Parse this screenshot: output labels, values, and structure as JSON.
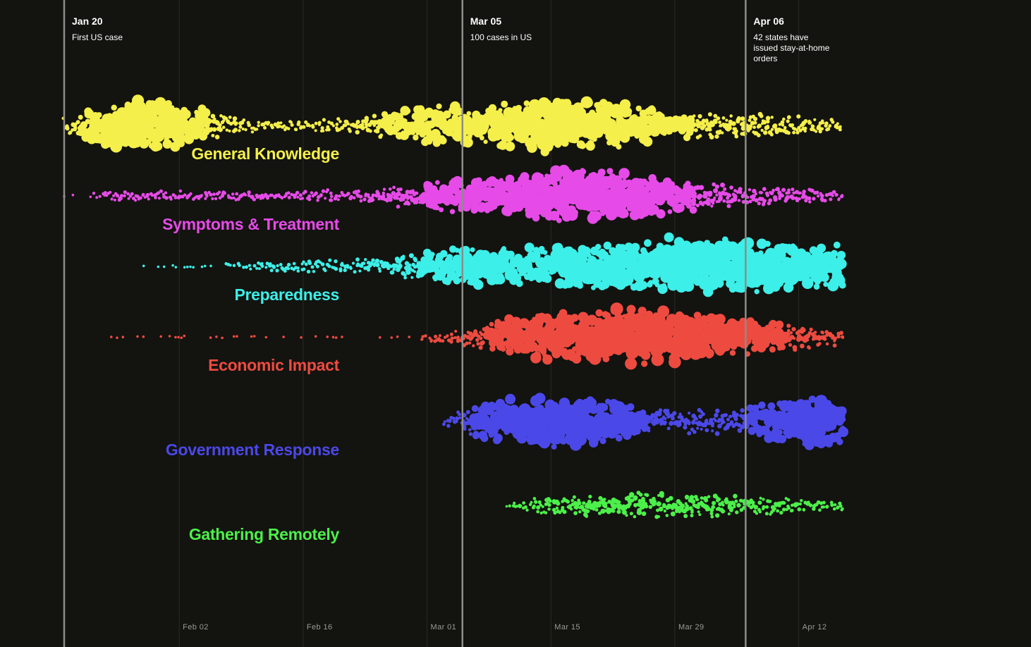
{
  "chart_data": {
    "type": "scatter",
    "subtype": "beeswarm-timeline",
    "x_axis": {
      "type": "date",
      "range": [
        "2020-01-20",
        "2020-04-17"
      ],
      "ticks": [
        {
          "date": "2020-02-02",
          "label": "Feb 02"
        },
        {
          "date": "2020-02-16",
          "label": "Feb 16"
        },
        {
          "date": "2020-03-01",
          "label": "Mar 01"
        },
        {
          "date": "2020-03-15",
          "label": "Mar 15"
        },
        {
          "date": "2020-03-29",
          "label": "Mar 29"
        },
        {
          "date": "2020-04-12",
          "label": "Apr 12"
        }
      ],
      "grid": true
    },
    "milestones": [
      {
        "date": "2020-01-20",
        "label": "Jan 20",
        "note": "First US case"
      },
      {
        "date": "2020-03-05",
        "label": "Mar 05",
        "note": "100 cases in US"
      },
      {
        "date": "2020-04-06",
        "label": "Apr 06",
        "note": "42 states have issued stay-at-home orders"
      }
    ],
    "series": [
      {
        "name": "General Knowledge",
        "color": "#f4ef4a",
        "density": [
          [
            0,
            0.25
          ],
          [
            3,
            0.65
          ],
          [
            7,
            0.95
          ],
          [
            10,
            0.95
          ],
          [
            13,
            0.8
          ],
          [
            17,
            0.45
          ],
          [
            21,
            0.25
          ],
          [
            28,
            0.18
          ],
          [
            33,
            0.35
          ],
          [
            38,
            0.6
          ],
          [
            43,
            0.7
          ],
          [
            47,
            0.65
          ],
          [
            51,
            0.85
          ],
          [
            56,
            1.0
          ],
          [
            62,
            0.8
          ],
          [
            68,
            0.55
          ],
          [
            74,
            0.45
          ],
          [
            81,
            0.38
          ],
          [
            88,
            0.25
          ]
        ]
      },
      {
        "name": "Symptoms & Treatment",
        "color": "#e64be8",
        "density": [
          [
            0,
            0.05
          ],
          [
            5,
            0.18
          ],
          [
            14,
            0.2
          ],
          [
            23,
            0.2
          ],
          [
            32,
            0.22
          ],
          [
            38,
            0.45
          ],
          [
            45,
            0.6
          ],
          [
            52,
            0.8
          ],
          [
            58,
            0.95
          ],
          [
            62,
            0.85
          ],
          [
            68,
            0.6
          ],
          [
            75,
            0.4
          ],
          [
            82,
            0.32
          ],
          [
            88,
            0.22
          ]
        ]
      },
      {
        "name": "Preparedness",
        "color": "#3cefe8",
        "density": [
          [
            7,
            0.08
          ],
          [
            10,
            0.08
          ],
          [
            13,
            0.08
          ],
          [
            35,
            0.3
          ],
          [
            40,
            0.5
          ],
          [
            45,
            0.7
          ],
          [
            52,
            0.7
          ],
          [
            60,
            0.8
          ],
          [
            68,
            1.0
          ],
          [
            75,
            0.95
          ],
          [
            82,
            0.85
          ],
          [
            88,
            0.75
          ]
        ]
      },
      {
        "name": "Economic Impact",
        "color": "#ee4b40",
        "density": [
          [
            4,
            0.1
          ],
          [
            14,
            0.1
          ],
          [
            24,
            0.1
          ],
          [
            40,
            0.12
          ],
          [
            45,
            0.3
          ],
          [
            50,
            0.65
          ],
          [
            56,
            0.85
          ],
          [
            62,
            1.0
          ],
          [
            68,
            0.95
          ],
          [
            74,
            0.75
          ],
          [
            80,
            0.55
          ],
          [
            88,
            0.3
          ]
        ]
      },
      {
        "name": "Government Response",
        "color": "#4b48e8",
        "density": [
          [
            43,
            0.2
          ],
          [
            48,
            0.7
          ],
          [
            54,
            0.95
          ],
          [
            60,
            0.85
          ],
          [
            66,
            0.5
          ],
          [
            72,
            0.45
          ],
          [
            76,
            0.4
          ],
          [
            81,
            0.8
          ],
          [
            85,
            0.95
          ],
          [
            88,
            0.7
          ]
        ]
      },
      {
        "name": "Gathering Remotely",
        "color": "#4cf04a",
        "density": [
          [
            49,
            0.08
          ],
          [
            54,
            0.3
          ],
          [
            60,
            0.45
          ],
          [
            66,
            0.5
          ],
          [
            72,
            0.45
          ],
          [
            78,
            0.35
          ],
          [
            84,
            0.25
          ],
          [
            88,
            0.2
          ]
        ]
      }
    ]
  }
}
